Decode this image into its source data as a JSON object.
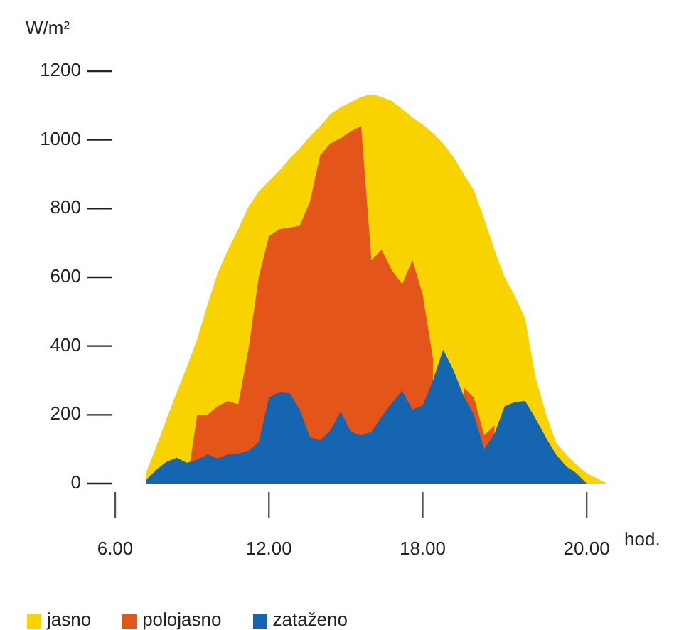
{
  "chart_data": {
    "type": "area",
    "ylabel": "W/m²",
    "xlabel": "hod.",
    "categories": [
      "6.00",
      null,
      null,
      null,
      null,
      null,
      null,
      null,
      null,
      null,
      null,
      null,
      null,
      null,
      null,
      "12.00",
      null,
      null,
      null,
      null,
      null,
      null,
      null,
      null,
      null,
      null,
      null,
      null,
      null,
      null,
      "18.00",
      null,
      null,
      null,
      null,
      null,
      null,
      null,
      null,
      null,
      null,
      null,
      null,
      null,
      null,
      null,
      "20.00",
      null,
      null
    ],
    "series": [
      {
        "name": "jasno",
        "color": "#f9d300",
        "values": [
          null,
          null,
          null,
          30,
          107,
          187,
          265,
          340,
          420,
          520,
          613,
          680,
          740,
          805,
          850,
          880,
          910,
          945,
          975,
          1010,
          1040,
          1075,
          1095,
          1110,
          1125,
          1133,
          1125,
          1113,
          1090,
          1065,
          1045,
          1020,
          990,
          950,
          900,
          853,
          770,
          680,
          600,
          545,
          480,
          310,
          205,
          120,
          85,
          55,
          30,
          15,
          0
        ]
      },
      {
        "name": "polojasno",
        "color": "#e4551a",
        "values": [
          null,
          null,
          null,
          null,
          null,
          null,
          null,
          0,
          200,
          200,
          225,
          240,
          230,
          390,
          600,
          720,
          740,
          745,
          750,
          820,
          955,
          990,
          1005,
          1025,
          1040,
          650,
          680,
          620,
          580,
          650,
          550,
          365,
          null,
          null,
          280,
          250,
          140,
          170,
          null,
          null,
          null,
          null,
          null,
          null,
          null,
          null,
          null,
          null,
          null
        ]
      },
      {
        "name": "zataženo",
        "color": "#1565b0",
        "values": [
          null,
          null,
          null,
          10,
          40,
          63,
          75,
          60,
          70,
          85,
          73,
          85,
          87,
          95,
          120,
          250,
          267,
          265,
          215,
          135,
          125,
          155,
          210,
          150,
          140,
          150,
          195,
          235,
          270,
          215,
          227,
          300,
          390,
          330,
          255,
          200,
          100,
          145,
          225,
          237,
          240,
          190,
          135,
          85,
          50,
          30,
          0,
          null,
          null
        ]
      }
    ],
    "ylim": [
      0,
      1200
    ],
    "yticks": [
      0,
      200,
      400,
      600,
      800,
      1000,
      1200
    ],
    "legend": "bottom left"
  }
}
